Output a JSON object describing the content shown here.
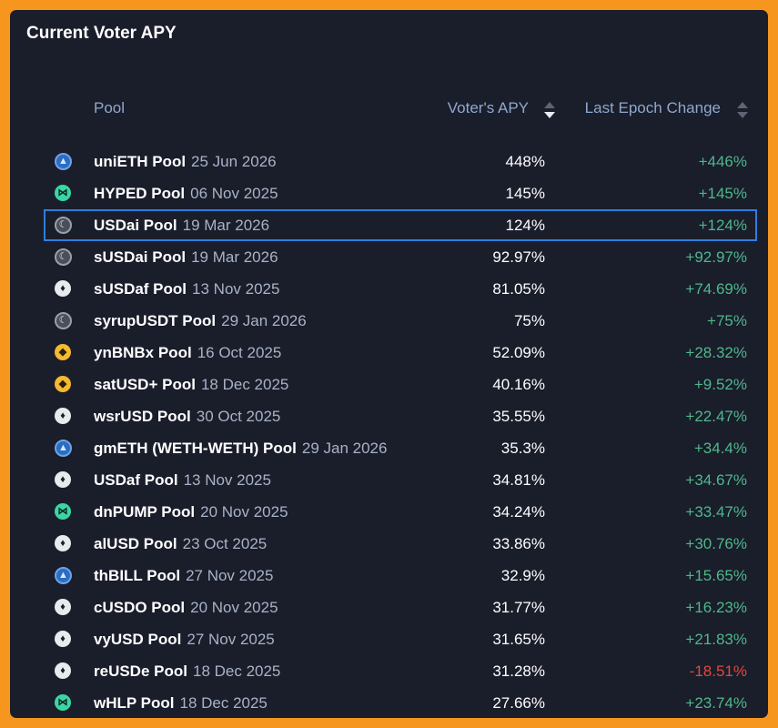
{
  "title": "Current Voter APY",
  "columns": {
    "pool": "Pool",
    "apy": "Voter's APY",
    "change": "Last Epoch Change"
  },
  "colors": {
    "background": "#f7961f",
    "panel": "#1a1d2a",
    "positive": "#4fb88b",
    "negative": "#e0483f",
    "highlight": "#2e7ee0"
  },
  "rows": [
    {
      "icon": "arrow-icon",
      "name": "uniETH Pool",
      "date": "25 Jun 2026",
      "apy": "448%",
      "change": "+446%",
      "sign": "pos"
    },
    {
      "icon": "bow-icon",
      "name": "HYPED Pool",
      "date": "06 Nov 2025",
      "apy": "145%",
      "change": "+145%",
      "sign": "pos"
    },
    {
      "icon": "moon-icon",
      "name": "USDai Pool",
      "date": "19 Mar 2026",
      "apy": "124%",
      "change": "+124%",
      "sign": "pos",
      "highlight": true
    },
    {
      "icon": "moon-icon",
      "name": "sUSDai Pool",
      "date": "19 Mar 2026",
      "apy": "92.97%",
      "change": "+92.97%",
      "sign": "pos"
    },
    {
      "icon": "eth-icon",
      "name": "sUSDaf Pool",
      "date": "13 Nov 2025",
      "apy": "81.05%",
      "change": "+74.69%",
      "sign": "pos"
    },
    {
      "icon": "moon-icon",
      "name": "syrupUSDT Pool",
      "date": "29 Jan 2026",
      "apy": "75%",
      "change": "+75%",
      "sign": "pos"
    },
    {
      "icon": "bnb-icon",
      "name": "ynBNBx Pool",
      "date": "16 Oct 2025",
      "apy": "52.09%",
      "change": "+28.32%",
      "sign": "pos"
    },
    {
      "icon": "bnb-icon",
      "name": "satUSD+ Pool",
      "date": "18 Dec 2025",
      "apy": "40.16%",
      "change": "+9.52%",
      "sign": "pos"
    },
    {
      "icon": "eth-icon",
      "name": "wsrUSD Pool",
      "date": "30 Oct 2025",
      "apy": "35.55%",
      "change": "+22.47%",
      "sign": "pos"
    },
    {
      "icon": "arrow-icon",
      "name": "gmETH (WETH-WETH) Pool",
      "date": "29 Jan 2026",
      "apy": "35.3%",
      "change": "+34.4%",
      "sign": "pos"
    },
    {
      "icon": "eth-icon",
      "name": "USDaf Pool",
      "date": "13 Nov 2025",
      "apy": "34.81%",
      "change": "+34.67%",
      "sign": "pos"
    },
    {
      "icon": "bow-icon",
      "name": "dnPUMP Pool",
      "date": "20 Nov 2025",
      "apy": "34.24%",
      "change": "+33.47%",
      "sign": "pos"
    },
    {
      "icon": "eth-icon",
      "name": "alUSD Pool",
      "date": "23 Oct 2025",
      "apy": "33.86%",
      "change": "+30.76%",
      "sign": "pos"
    },
    {
      "icon": "arrow-icon",
      "name": "thBILL Pool",
      "date": "27 Nov 2025",
      "apy": "32.9%",
      "change": "+15.65%",
      "sign": "pos"
    },
    {
      "icon": "eth-icon",
      "name": "cUSDO Pool",
      "date": "20 Nov 2025",
      "apy": "31.77%",
      "change": "+16.23%",
      "sign": "pos"
    },
    {
      "icon": "eth-icon",
      "name": "vyUSD Pool",
      "date": "27 Nov 2025",
      "apy": "31.65%",
      "change": "+21.83%",
      "sign": "pos"
    },
    {
      "icon": "eth-icon",
      "name": "reUSDe Pool",
      "date": "18 Dec 2025",
      "apy": "31.28%",
      "change": "-18.51%",
      "sign": "neg"
    },
    {
      "icon": "bow-icon",
      "name": "wHLP Pool",
      "date": "18 Dec 2025",
      "apy": "27.66%",
      "change": "+23.74%",
      "sign": "pos"
    }
  ]
}
